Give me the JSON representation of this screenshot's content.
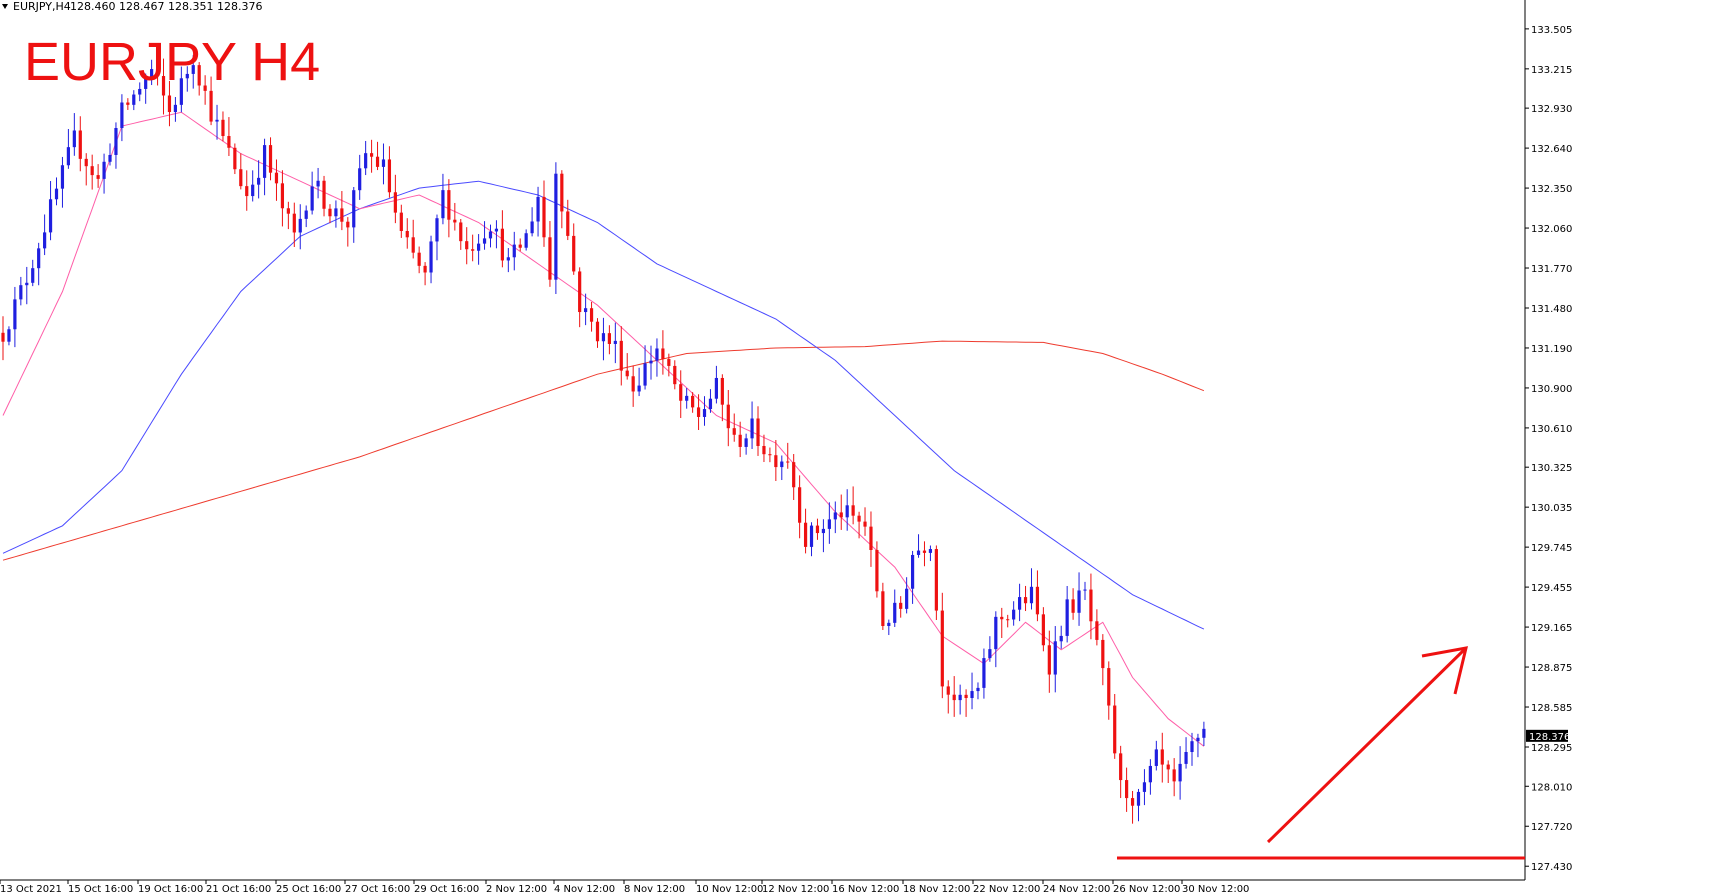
{
  "header": {
    "symbol": "EURJPY,H4",
    "ohlc": "128.460 128.467 128.351 128.376"
  },
  "overlay_title": "EURJPY H4",
  "current_price_label": "128.376",
  "colors": {
    "bull": "#1f1fe0",
    "bear": "#ee1111",
    "ma_fast": "#ff5ea8",
    "ma_mid": "#4a4aff",
    "ma_slow": "#ee3b2e",
    "annotation": "#ee1111",
    "axis": "#000000"
  },
  "chart_data": {
    "type": "candlestick",
    "title": "EURJPY H4",
    "ylim": [
      127.33,
      133.7
    ],
    "yticks": [
      "133.505",
      "133.215",
      "132.930",
      "132.640",
      "132.350",
      "132.060",
      "131.770",
      "131.480",
      "131.190",
      "130.900",
      "130.610",
      "130.325",
      "130.035",
      "129.745",
      "129.455",
      "129.165",
      "128.875",
      "128.585",
      "128.295",
      "128.010",
      "127.720",
      "127.430"
    ],
    "xticks": [
      "13 Oct 2021",
      "15 Oct 16:00",
      "19 Oct 16:00",
      "21 Oct 16:00",
      "25 Oct 16:00",
      "27 Oct 16:00",
      "29 Oct 16:00",
      "2 Nov 12:00",
      "4 Nov 12:00",
      "8 Nov 12:00",
      "10 Nov 12:00",
      "12 Nov 12:00",
      "16 Nov 12:00",
      "18 Nov 12:00",
      "22 Nov 12:00",
      "24 Nov 12:00",
      "26 Nov 12:00",
      "30 Nov 12:00"
    ],
    "anchors": [
      [
        0,
        131.3
      ],
      [
        4,
        131.7
      ],
      [
        8,
        132.2
      ],
      [
        12,
        132.7
      ],
      [
        16,
        132.4
      ],
      [
        20,
        132.9
      ],
      [
        25,
        133.2
      ],
      [
        28,
        132.9
      ],
      [
        32,
        133.3
      ],
      [
        35,
        132.9
      ],
      [
        38,
        132.6
      ],
      [
        41,
        132.3
      ],
      [
        44,
        132.6
      ],
      [
        47,
        132.2
      ],
      [
        49,
        132.0
      ],
      [
        52,
        132.4
      ],
      [
        55,
        132.2
      ],
      [
        58,
        132.1
      ],
      [
        61,
        132.6
      ],
      [
        64,
        132.5
      ],
      [
        67,
        132.0
      ],
      [
        71,
        131.7
      ],
      [
        74,
        132.3
      ],
      [
        78,
        131.9
      ],
      [
        82,
        132.1
      ],
      [
        85,
        131.8
      ],
      [
        88,
        132.0
      ],
      [
        90,
        132.3
      ],
      [
        92,
        131.7
      ],
      [
        93,
        132.5
      ],
      [
        97,
        131.5
      ],
      [
        100,
        131.3
      ],
      [
        103,
        131.2
      ],
      [
        106,
        130.9
      ],
      [
        110,
        131.2
      ],
      [
        114,
        130.8
      ],
      [
        117,
        130.7
      ],
      [
        120,
        130.9
      ],
      [
        123,
        130.5
      ],
      [
        126,
        130.6
      ],
      [
        129,
        130.4
      ],
      [
        132,
        130.4
      ],
      [
        135,
        129.8
      ],
      [
        138,
        129.9
      ],
      [
        141,
        130.0
      ],
      [
        145,
        129.9
      ],
      [
        148,
        129.2
      ],
      [
        151,
        129.3
      ],
      [
        153,
        129.7
      ],
      [
        156,
        129.8
      ],
      [
        158,
        128.8
      ],
      [
        161,
        128.6
      ],
      [
        164,
        128.7
      ],
      [
        167,
        129.2
      ],
      [
        170,
        129.3
      ],
      [
        173,
        129.4
      ],
      [
        176,
        128.9
      ],
      [
        179,
        129.3
      ],
      [
        182,
        129.4
      ],
      [
        185,
        128.8
      ],
      [
        188,
        128.0
      ],
      [
        191,
        127.9
      ],
      [
        194,
        128.2
      ],
      [
        197,
        128.0
      ],
      [
        200,
        128.3
      ],
      [
        202,
        128.45
      ]
    ],
    "ma_fast": [
      [
        0,
        130.7
      ],
      [
        10,
        131.6
      ],
      [
        20,
        132.8
      ],
      [
        30,
        132.9
      ],
      [
        40,
        132.6
      ],
      [
        50,
        132.4
      ],
      [
        60,
        132.2
      ],
      [
        70,
        132.3
      ],
      [
        80,
        132.1
      ],
      [
        90,
        131.8
      ],
      [
        100,
        131.5
      ],
      [
        110,
        131.1
      ],
      [
        120,
        130.7
      ],
      [
        130,
        130.5
      ],
      [
        140,
        130.0
      ],
      [
        150,
        129.6
      ],
      [
        158,
        129.1
      ],
      [
        165,
        128.9
      ],
      [
        172,
        129.2
      ],
      [
        178,
        129.0
      ],
      [
        185,
        129.2
      ],
      [
        190,
        128.8
      ],
      [
        196,
        128.5
      ],
      [
        202,
        128.3
      ]
    ],
    "ma_mid": [
      [
        0,
        129.7
      ],
      [
        10,
        129.9
      ],
      [
        20,
        130.3
      ],
      [
        30,
        131.0
      ],
      [
        40,
        131.6
      ],
      [
        50,
        132.0
      ],
      [
        60,
        132.2
      ],
      [
        70,
        132.35
      ],
      [
        80,
        132.4
      ],
      [
        90,
        132.3
      ],
      [
        100,
        132.1
      ],
      [
        110,
        131.8
      ],
      [
        120,
        131.6
      ],
      [
        130,
        131.4
      ],
      [
        140,
        131.1
      ],
      [
        150,
        130.7
      ],
      [
        160,
        130.3
      ],
      [
        170,
        130.0
      ],
      [
        180,
        129.7
      ],
      [
        190,
        129.4
      ],
      [
        202,
        129.15
      ]
    ],
    "ma_slow": [
      [
        0,
        129.65
      ],
      [
        20,
        129.9
      ],
      [
        40,
        130.15
      ],
      [
        60,
        130.4
      ],
      [
        80,
        130.7
      ],
      [
        100,
        131.0
      ],
      [
        115,
        131.15
      ],
      [
        130,
        131.19
      ],
      [
        145,
        131.2
      ],
      [
        158,
        131.24
      ],
      [
        175,
        131.23
      ],
      [
        185,
        131.15
      ],
      [
        195,
        131.0
      ],
      [
        202,
        130.88
      ]
    ],
    "support_level": 127.49
  }
}
